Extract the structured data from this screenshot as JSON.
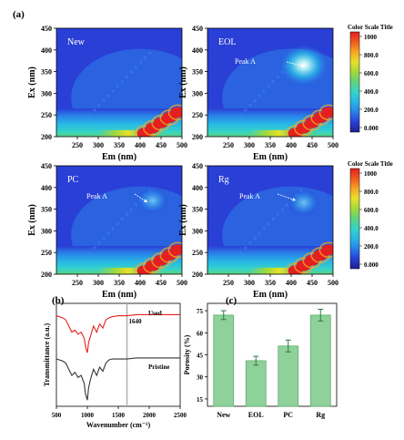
{
  "figure": {
    "label_a": "(a)",
    "label_b": "(b)",
    "label_c": "(c)"
  },
  "colors": {
    "eem_scale": [
      "#1f1f8f",
      "#2a3fd6",
      "#2a7fe8",
      "#27b7e6",
      "#35d4c8",
      "#5fd27e",
      "#a2d93a",
      "#e8e02a",
      "#f5a623",
      "#ef5a1f",
      "#e41f1f"
    ],
    "ftir_used": "#e8201c",
    "ftir_pristine": "#333333",
    "bar_fill": "#8fd19a",
    "bar_stroke": "#5fae6f",
    "marker_line": "#b0b0b0"
  },
  "chart_data": [
    {
      "type": "heatmap",
      "panel": "New",
      "xlabel": "Em (nm)",
      "ylabel": "Ex (nm)",
      "xlim": [
        200,
        500
      ],
      "ylim": [
        200,
        450
      ],
      "xticks": [
        250,
        300,
        350,
        400,
        450,
        500
      ],
      "yticks": [
        200,
        250,
        300,
        350,
        400,
        450
      ],
      "peak_label": "",
      "features": [
        {
          "kind": "rayleigh_scatter",
          "intensity": 1000
        },
        {
          "kind": "background_band",
          "ex_range": [
            200,
            260
          ],
          "intensity": 350
        }
      ]
    },
    {
      "type": "heatmap",
      "panel": "EOL",
      "xlabel": "Em (nm)",
      "ylabel": "Ex (nm)",
      "xlim": [
        200,
        500
      ],
      "ylim": [
        200,
        450
      ],
      "xticks": [
        250,
        300,
        350,
        400,
        450,
        500
      ],
      "yticks": [
        200,
        250,
        300,
        350,
        400,
        450
      ],
      "peak_label": "Peak A",
      "features": [
        {
          "kind": "peak",
          "em": 430,
          "ex": 365,
          "intensity": 700
        },
        {
          "kind": "rayleigh_scatter",
          "intensity": 1000
        }
      ]
    },
    {
      "type": "heatmap",
      "panel": "PC",
      "xlabel": "Em (nm)",
      "ylabel": "Ex (nm)",
      "xlim": [
        200,
        500
      ],
      "ylim": [
        200,
        450
      ],
      "xticks": [
        250,
        300,
        350,
        400,
        450,
        500
      ],
      "yticks": [
        200,
        250,
        300,
        350,
        400,
        450
      ],
      "peak_label": "Peak A",
      "features": [
        {
          "kind": "peak",
          "em": 430,
          "ex": 370,
          "intensity": 300
        },
        {
          "kind": "rayleigh_scatter",
          "intensity": 1000
        }
      ]
    },
    {
      "type": "heatmap",
      "panel": "Rg",
      "xlabel": "Em (nm)",
      "ylabel": "Ex (nm)",
      "xlim": [
        200,
        500
      ],
      "ylim": [
        200,
        450
      ],
      "xticks": [
        250,
        300,
        350,
        400,
        450,
        500
      ],
      "yticks": [
        200,
        250,
        300,
        350,
        400,
        450
      ],
      "peak_label": "Peak A",
      "features": [
        {
          "kind": "peak",
          "em": 430,
          "ex": 365,
          "intensity": 200
        },
        {
          "kind": "rayleigh_scatter",
          "intensity": 1000
        }
      ]
    },
    {
      "type": "line",
      "xlabel": "Wavenumber (cm⁻¹)",
      "ylabel": "Transmittance (a.u.)",
      "xlim": [
        500,
        2500
      ],
      "xticks": [
        500,
        1000,
        1500,
        2000,
        2500
      ],
      "marker_line": {
        "x": 1640,
        "label": "1640"
      },
      "series": [
        {
          "name": "Used",
          "x": [
            500,
            600,
            650,
            700,
            750,
            800,
            850,
            900,
            950,
            970,
            1000,
            1020,
            1050,
            1100,
            1150,
            1200,
            1250,
            1300,
            1350,
            1400,
            1500,
            1640,
            1800,
            2000,
            2500
          ],
          "y": [
            0.88,
            0.86,
            0.84,
            0.78,
            0.72,
            0.74,
            0.7,
            0.72,
            0.66,
            0.58,
            0.52,
            0.62,
            0.68,
            0.78,
            0.72,
            0.8,
            0.76,
            0.84,
            0.86,
            0.87,
            0.88,
            0.88,
            0.89,
            0.89,
            0.89
          ]
        },
        {
          "name": "Pristine",
          "x": [
            500,
            600,
            650,
            700,
            750,
            800,
            850,
            900,
            950,
            970,
            1000,
            1020,
            1050,
            1100,
            1150,
            1200,
            1250,
            1300,
            1350,
            1400,
            1500,
            1640,
            1800,
            2000,
            2500
          ],
          "y": [
            0.46,
            0.44,
            0.42,
            0.36,
            0.3,
            0.33,
            0.28,
            0.3,
            0.22,
            0.12,
            0.06,
            0.18,
            0.26,
            0.36,
            0.3,
            0.38,
            0.34,
            0.42,
            0.45,
            0.46,
            0.46,
            0.46,
            0.47,
            0.47,
            0.47
          ]
        }
      ]
    },
    {
      "type": "bar",
      "categories": [
        "New",
        "EOL",
        "PC",
        "Rg"
      ],
      "values": [
        72,
        41,
        51,
        72
      ],
      "errors": [
        3,
        3,
        4,
        4
      ],
      "ylabel": "Porosity (%)",
      "ylim": [
        10,
        80
      ],
      "yticks": [
        15,
        30,
        45,
        60,
        75
      ]
    }
  ],
  "color_scale": {
    "title": "Color Scale Title",
    "ticks": [
      "1000",
      "800.0",
      "600.0",
      "400.0",
      "200.0",
      "0.000"
    ]
  }
}
